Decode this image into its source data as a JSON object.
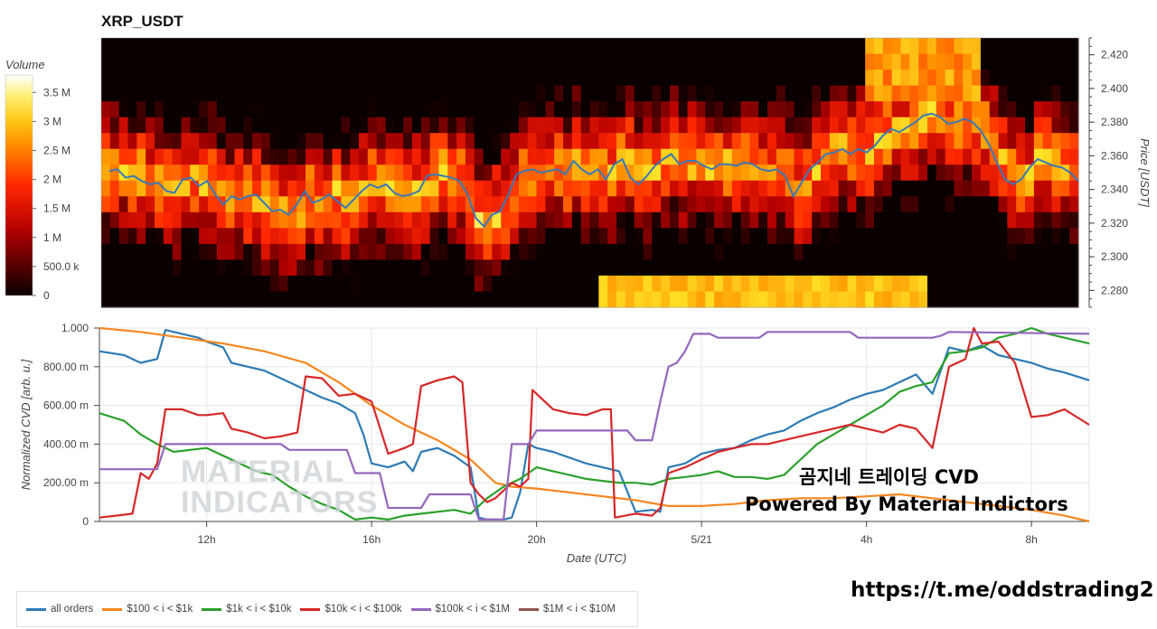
{
  "colors": {
    "all_orders": "#2e7bb4",
    "b100_1k": "#f5861f",
    "b1k_10k": "#2ca02c",
    "b10k_100k": "#d62728",
    "b100k_1m": "#9467bd",
    "b1m_10m": "#8c564b",
    "price_line": "#3a78b5"
  },
  "chart_data": [
    {
      "type": "heatmap",
      "title": "XRP_USDT",
      "ylabel": "Price [USDT]",
      "ylim": [
        2.27,
        2.43
      ],
      "yticks": [
        "2.280",
        "2.300",
        "2.320",
        "2.340",
        "2.360",
        "2.380",
        "2.400",
        "2.420"
      ],
      "colorbar": {
        "title": "Volume",
        "ticks": [
          "0",
          "500.0 k",
          "1 M",
          "1.5 M",
          "2 M",
          "2.5 M",
          "3 M",
          "3.5 M"
        ],
        "range": [
          0,
          3800000
        ]
      },
      "price_series": {
        "name": "price",
        "x_hours": [
          9.6,
          9.8,
          10.0,
          10.2,
          10.4,
          10.6,
          10.8,
          11.0,
          11.2,
          11.4,
          11.6,
          11.8,
          12.0,
          12.2,
          12.4,
          12.6,
          12.8,
          13.0,
          13.2,
          13.4,
          13.6,
          13.8,
          14.0,
          14.2,
          14.4,
          14.6,
          14.8,
          15.0,
          15.2,
          15.4,
          15.6,
          15.8,
          16.0,
          16.2,
          16.4,
          16.6,
          16.8,
          17.0,
          17.2,
          17.4,
          17.6,
          17.8,
          18.0,
          18.2,
          18.4,
          18.6,
          18.8,
          19.0,
          19.2,
          19.4,
          19.6,
          19.8,
          20.0,
          20.2,
          20.4,
          20.6,
          20.8,
          21.0,
          21.2,
          21.4,
          21.6,
          21.8,
          22.0,
          22.2,
          22.4,
          22.6,
          22.8,
          23.0,
          23.2,
          23.4,
          23.6,
          23.8,
          24.0,
          24.2,
          24.4,
          24.6,
          24.8,
          25.0,
          25.2,
          25.4,
          25.6,
          25.8,
          26.0,
          26.2,
          26.4,
          26.6,
          26.8,
          27.0,
          27.2,
          27.4,
          27.6,
          27.8,
          28.0,
          28.2,
          28.4,
          28.6,
          28.8,
          29.0,
          29.2,
          29.4,
          29.6,
          29.8,
          30.0,
          30.2,
          30.4,
          30.6,
          30.8,
          31.0,
          31.2,
          31.4,
          31.6,
          31.8,
          32.0,
          32.2,
          32.4,
          32.6,
          32.8,
          33.0,
          33.2,
          33.4
        ],
        "y": [
          2.351,
          2.352,
          2.347,
          2.348,
          2.345,
          2.343,
          2.344,
          2.339,
          2.338,
          2.346,
          2.347,
          2.342,
          2.345,
          2.337,
          2.331,
          2.336,
          2.334,
          2.336,
          2.337,
          2.332,
          2.327,
          2.328,
          2.325,
          2.331,
          2.339,
          2.332,
          2.334,
          2.337,
          2.333,
          2.329,
          2.334,
          2.339,
          2.343,
          2.341,
          2.343,
          2.338,
          2.336,
          2.337,
          2.339,
          2.348,
          2.349,
          2.348,
          2.347,
          2.345,
          2.337,
          2.323,
          2.318,
          2.325,
          2.327,
          2.337,
          2.349,
          2.351,
          2.352,
          2.35,
          2.351,
          2.352,
          2.349,
          2.357,
          2.352,
          2.349,
          2.352,
          2.346,
          2.355,
          2.358,
          2.347,
          2.343,
          2.348,
          2.354,
          2.358,
          2.361,
          2.355,
          2.357,
          2.357,
          2.354,
          2.352,
          2.355,
          2.355,
          2.354,
          2.356,
          2.355,
          2.352,
          2.351,
          2.352,
          2.348,
          2.336,
          2.344,
          2.352,
          2.356,
          2.361,
          2.362,
          2.364,
          2.361,
          2.364,
          2.362,
          2.366,
          2.372,
          2.376,
          2.374,
          2.377,
          2.38,
          2.384,
          2.385,
          2.383,
          2.379,
          2.38,
          2.382,
          2.38,
          2.375,
          2.367,
          2.356,
          2.346,
          2.343,
          2.346,
          2.353,
          2.358,
          2.356,
          2.354,
          2.353,
          2.35,
          2.345
        ]
      }
    },
    {
      "type": "line",
      "xlabel": "Date (UTC)",
      "ylabel": "Normalized CVD [arb. u.]",
      "ylim": [
        0,
        1
      ],
      "yticks": [
        "0",
        "200.00 m",
        "400.00 m",
        "600.00 m",
        "800.00 m",
        "1.000"
      ],
      "xticks": [
        {
          "hour": 12,
          "label": "12h"
        },
        {
          "hour": 16,
          "label": "16h"
        },
        {
          "hour": 20,
          "label": "20h"
        },
        {
          "hour": 24,
          "label": "5/21"
        },
        {
          "hour": 28,
          "label": "4h"
        },
        {
          "hour": 32,
          "label": "8h"
        }
      ],
      "xlim_hours": [
        9.4,
        33.4
      ],
      "series": [
        {
          "name": "all orders",
          "color_key": "all_orders",
          "x": [
            9.4,
            10.0,
            10.4,
            10.8,
            11.0,
            11.4,
            11.8,
            12.0,
            12.4,
            12.6,
            13.0,
            13.4,
            13.8,
            14.0,
            14.4,
            14.8,
            15.2,
            15.6,
            15.8,
            16.0,
            16.4,
            16.8,
            17.0,
            17.2,
            17.6,
            18.0,
            18.4,
            18.6,
            18.8,
            19.2,
            19.4,
            19.6,
            19.8,
            20.0,
            20.4,
            20.8,
            21.2,
            21.6,
            22.0,
            22.4,
            22.8,
            23.0,
            23.2,
            23.6,
            24.0,
            24.4,
            24.8,
            25.2,
            25.6,
            26.0,
            26.4,
            26.8,
            27.2,
            27.6,
            28.0,
            28.4,
            28.8,
            29.2,
            29.6,
            30.0,
            30.4,
            30.8,
            31.2,
            31.6,
            32.0,
            32.4,
            32.8,
            33.4
          ],
          "y": [
            0.88,
            0.86,
            0.82,
            0.84,
            0.99,
            0.97,
            0.95,
            0.93,
            0.9,
            0.82,
            0.8,
            0.78,
            0.74,
            0.72,
            0.68,
            0.64,
            0.61,
            0.56,
            0.45,
            0.3,
            0.28,
            0.31,
            0.26,
            0.36,
            0.38,
            0.34,
            0.28,
            0.02,
            0.01,
            0.01,
            0.02,
            0.15,
            0.4,
            0.38,
            0.36,
            0.33,
            0.3,
            0.28,
            0.26,
            0.05,
            0.06,
            0.05,
            0.28,
            0.3,
            0.35,
            0.37,
            0.38,
            0.42,
            0.45,
            0.47,
            0.52,
            0.56,
            0.59,
            0.63,
            0.66,
            0.68,
            0.72,
            0.76,
            0.66,
            0.9,
            0.88,
            0.91,
            0.86,
            0.84,
            0.82,
            0.79,
            0.77,
            0.73
          ]
        },
        {
          "name": "$100 < i < $1k",
          "color_key": "b100_1k",
          "x": [
            9.4,
            10.4,
            11.4,
            12.4,
            13.4,
            14.4,
            15.2,
            16.0,
            16.8,
            17.6,
            18.4,
            19.0,
            19.4,
            20.0,
            20.8,
            21.6,
            22.4,
            23.2,
            24.0,
            24.8,
            25.6,
            26.4,
            27.2,
            28.0,
            28.8,
            29.6,
            30.4,
            31.2,
            32.0,
            32.8,
            33.4
          ],
          "y": [
            1.0,
            0.98,
            0.95,
            0.92,
            0.88,
            0.82,
            0.72,
            0.6,
            0.5,
            0.42,
            0.32,
            0.2,
            0.18,
            0.17,
            0.15,
            0.13,
            0.11,
            0.08,
            0.08,
            0.09,
            0.11,
            0.12,
            0.12,
            0.13,
            0.14,
            0.12,
            0.1,
            0.08,
            0.06,
            0.03,
            0.0
          ]
        },
        {
          "name": "$1k < i < $10k",
          "color_key": "b1k_10k",
          "x": [
            9.4,
            10.0,
            10.4,
            10.8,
            11.2,
            11.6,
            12.0,
            12.4,
            12.8,
            13.2,
            13.6,
            14.0,
            14.4,
            14.8,
            15.2,
            15.6,
            16.0,
            16.4,
            16.8,
            17.2,
            17.6,
            18.0,
            18.4,
            18.8,
            19.2,
            19.6,
            20.0,
            20.4,
            20.8,
            21.2,
            21.6,
            22.0,
            22.4,
            22.8,
            23.2,
            23.6,
            24.0,
            24.4,
            24.8,
            25.2,
            25.6,
            26.0,
            26.4,
            26.8,
            27.2,
            27.6,
            28.0,
            28.4,
            28.8,
            29.2,
            29.6,
            30.0,
            30.4,
            30.8,
            31.2,
            31.6,
            32.0,
            32.4,
            32.8,
            33.4
          ],
          "y": [
            0.56,
            0.52,
            0.45,
            0.4,
            0.36,
            0.37,
            0.38,
            0.34,
            0.3,
            0.26,
            0.24,
            0.18,
            0.13,
            0.09,
            0.06,
            0.01,
            0.02,
            0.01,
            0.03,
            0.04,
            0.05,
            0.06,
            0.04,
            0.12,
            0.18,
            0.22,
            0.28,
            0.26,
            0.24,
            0.22,
            0.21,
            0.2,
            0.2,
            0.19,
            0.22,
            0.23,
            0.24,
            0.26,
            0.23,
            0.23,
            0.22,
            0.24,
            0.32,
            0.4,
            0.45,
            0.5,
            0.55,
            0.6,
            0.67,
            0.7,
            0.72,
            0.87,
            0.88,
            0.9,
            0.95,
            0.97,
            1.0,
            0.97,
            0.95,
            0.92
          ]
        },
        {
          "name": "$10k < i < $100k",
          "color_key": "b10k_100k",
          "x": [
            9.4,
            9.8,
            10.2,
            10.4,
            10.6,
            10.8,
            11.0,
            11.4,
            11.8,
            12.0,
            12.4,
            12.6,
            13.0,
            13.4,
            13.8,
            14.0,
            14.2,
            14.4,
            14.8,
            15.2,
            15.6,
            15.8,
            16.0,
            16.4,
            16.8,
            17.0,
            17.2,
            17.6,
            18.0,
            18.2,
            18.4,
            18.6,
            18.8,
            19.0,
            19.2,
            19.4,
            19.6,
            19.8,
            19.9,
            20.0,
            20.4,
            20.8,
            21.2,
            21.6,
            21.8,
            21.9,
            22.4,
            22.8,
            23.0,
            23.2,
            23.6,
            24.0,
            24.4,
            24.8,
            25.2,
            25.6,
            26.0,
            26.4,
            26.8,
            27.2,
            27.6,
            28.0,
            28.4,
            28.8,
            29.2,
            29.6,
            30.0,
            30.4,
            30.6,
            30.8,
            31.2,
            31.6,
            32.0,
            32.4,
            32.8,
            33.4
          ],
          "y": [
            0.02,
            0.03,
            0.04,
            0.25,
            0.22,
            0.3,
            0.58,
            0.58,
            0.55,
            0.55,
            0.56,
            0.48,
            0.46,
            0.43,
            0.44,
            0.45,
            0.46,
            0.75,
            0.74,
            0.65,
            0.66,
            0.64,
            0.62,
            0.35,
            0.38,
            0.4,
            0.7,
            0.73,
            0.75,
            0.72,
            0.2,
            0.14,
            0.1,
            0.12,
            0.16,
            0.2,
            0.18,
            0.22,
            0.68,
            0.66,
            0.58,
            0.56,
            0.55,
            0.58,
            0.58,
            0.02,
            0.04,
            0.03,
            0.07,
            0.25,
            0.28,
            0.32,
            0.36,
            0.38,
            0.4,
            0.4,
            0.42,
            0.44,
            0.46,
            0.48,
            0.5,
            0.48,
            0.46,
            0.5,
            0.48,
            0.38,
            0.8,
            0.84,
            1.0,
            0.92,
            0.93,
            0.82,
            0.54,
            0.55,
            0.58,
            0.5
          ]
        },
        {
          "name": "$100k < i < $1M",
          "color_key": "b100k_1m",
          "x": [
            9.4,
            10.8,
            11.0,
            13.8,
            14.0,
            15.4,
            15.6,
            16.2,
            16.4,
            17.2,
            17.4,
            18.4,
            18.6,
            19.2,
            19.4,
            19.8,
            20.0,
            22.2,
            22.4,
            22.8,
            23.0,
            23.2,
            23.4,
            23.6,
            23.8,
            24.2,
            24.4,
            25.4,
            25.6,
            27.6,
            27.8,
            29.6,
            29.8,
            30.0,
            33.4
          ],
          "y": [
            0.27,
            0.27,
            0.4,
            0.4,
            0.37,
            0.37,
            0.25,
            0.25,
            0.07,
            0.07,
            0.14,
            0.14,
            0.01,
            0.01,
            0.4,
            0.4,
            0.47,
            0.47,
            0.42,
            0.42,
            0.62,
            0.8,
            0.82,
            0.88,
            0.97,
            0.97,
            0.95,
            0.95,
            0.98,
            0.98,
            0.95,
            0.95,
            0.96,
            0.98,
            0.97
          ]
        },
        {
          "name": "$1M < i < $10M",
          "color_key": "b1m_10m",
          "x": [],
          "y": []
        }
      ]
    }
  ],
  "overlay": {
    "title": "곰지네 트레이딩 CVD",
    "subtitle": "Powered By Material Indictors"
  },
  "footer_link": "https://t.me/oddstrading2"
}
